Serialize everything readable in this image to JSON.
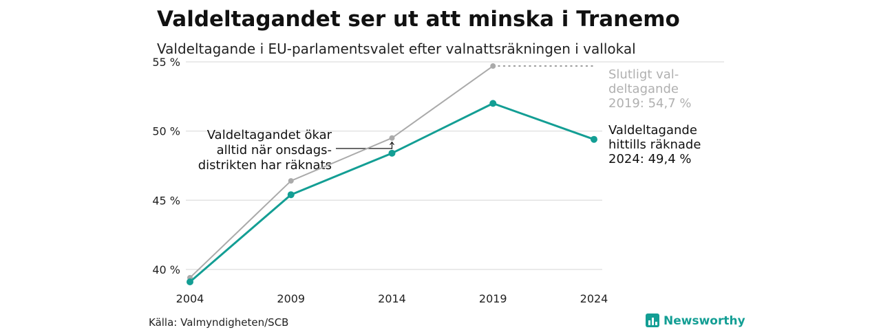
{
  "title": "Valdeltagandet ser ut att minska i Tranemo",
  "subtitle": "Valdeltagande i EU-parlamentsvalet efter valnattsräkningen i vallokal",
  "source": "Källa: Valmyndigheten/SCB",
  "brand": {
    "name": "Newsworthy",
    "icon": "newsworthy-logo-icon"
  },
  "colors": {
    "counted": "#139e94",
    "final": "#aaaaaa",
    "grid": "#e3e3e3",
    "brand": "#139e94"
  },
  "annotations": {
    "left": [
      "Valdeltagandet ökar",
      "alltid när onsdags-",
      "distrikten har räknats"
    ],
    "final": [
      "Slutligt val-",
      "deltagande",
      "2019: 54,7 %"
    ],
    "counted": [
      "Valdeltagande",
      "hittills räknade",
      "2024: 49,4 %"
    ]
  },
  "chart_data": {
    "type": "line",
    "title": "Valdeltagandet ser ut att minska i Tranemo",
    "subtitle": "Valdeltagande i EU-parlamentsvalet efter valnattsräkningen i vallokal",
    "x": [
      2004,
      2009,
      2014,
      2019,
      2024
    ],
    "x_tick_labels": [
      "2004",
      "2009",
      "2014",
      "2019",
      "2024"
    ],
    "y_ticks": [
      40,
      45,
      50,
      55
    ],
    "y_tick_labels": [
      "40 %",
      "45 %",
      "50 %",
      "55 %"
    ],
    "ylim": [
      39,
      55
    ],
    "grid": true,
    "series": [
      {
        "key": "final",
        "values": [
          39.4,
          46.4,
          49.5,
          54.7,
          null
        ]
      },
      {
        "key": "counted",
        "values": [
          39.1,
          45.4,
          48.4,
          52.0,
          49.4
        ]
      }
    ]
  }
}
